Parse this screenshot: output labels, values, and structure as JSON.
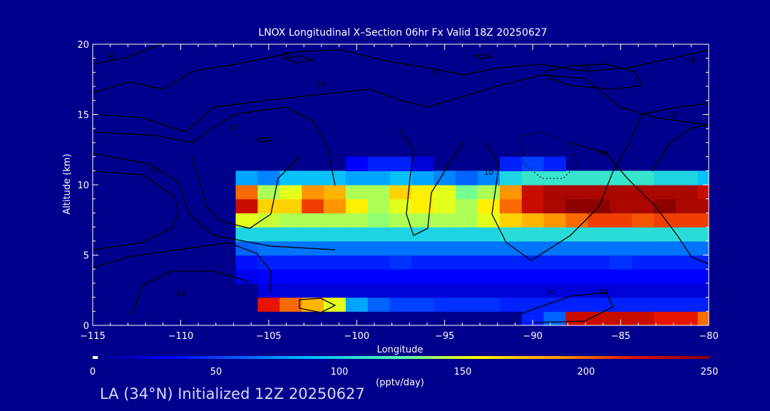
{
  "chart_data": {
    "type": "heatmap",
    "title": "LNOX Longitudinal X–Section 06hr  Fx Valid 18Z 20250627",
    "xlabel": "Longitude",
    "ylabel": "Altitude (km)",
    "xlim": [
      -115,
      -80
    ],
    "ylim": [
      0,
      20
    ],
    "xticks": [
      -115,
      -110,
      -105,
      -100,
      -95,
      -90,
      -85,
      -80
    ],
    "xtick_labels": [
      "−115",
      "−110",
      "−105",
      "−100",
      "−95",
      "−90",
      "−85",
      "−80"
    ],
    "yticks": [
      0,
      5,
      10,
      15,
      20
    ],
    "ytick_labels": [
      "0",
      "5",
      "10",
      "15",
      "20"
    ],
    "colorbar": {
      "label": "(pptv/day)",
      "min": 0,
      "max": 250,
      "ticks": [
        0,
        50,
        100,
        150,
        200,
        250
      ],
      "tick_labels": [
        "0",
        "50",
        "100",
        "150",
        "200",
        "250"
      ]
    },
    "longitudes": [
      -115,
      -113.75,
      -112.5,
      -111.25,
      -110,
      -108.75,
      -107.5,
      -106.25,
      -105,
      -103.75,
      -102.5,
      -101.25,
      -100,
      -98.75,
      -97.5,
      -96.25,
      -95,
      -93.75,
      -92.5,
      -91.25,
      -90,
      -88.75,
      -87.5,
      -86.25,
      -85,
      -83.75,
      -82.5,
      -81.25,
      -80
    ],
    "altitudes": [
      0.5,
      1.5,
      2.5,
      3.5,
      4.5,
      5.5,
      6.5,
      7.5,
      8.5,
      9.5,
      10.5,
      11.5
    ],
    "values": [
      [
        0,
        0,
        0,
        0,
        0,
        0,
        0,
        0,
        0,
        0,
        0,
        0,
        0,
        0,
        0,
        0,
        0,
        0,
        0,
        0,
        40,
        60,
        230,
        230,
        230,
        230,
        220,
        220,
        200
      ],
      [
        0,
        0,
        0,
        0,
        0,
        0,
        0,
        0,
        220,
        200,
        180,
        150,
        80,
        60,
        50,
        50,
        45,
        45,
        45,
        40,
        40,
        40,
        40,
        40,
        40,
        40,
        40,
        40,
        40
      ],
      [
        0,
        0,
        0,
        0,
        0,
        0,
        0,
        0,
        20,
        20,
        20,
        20,
        20,
        20,
        20,
        20,
        20,
        20,
        20,
        20,
        20,
        20,
        20,
        20,
        20,
        20,
        20,
        20,
        20
      ],
      [
        0,
        0,
        0,
        0,
        0,
        0,
        0,
        25,
        30,
        30,
        30,
        30,
        30,
        30,
        30,
        30,
        30,
        30,
        30,
        30,
        30,
        30,
        30,
        30,
        30,
        30,
        30,
        30,
        30
      ],
      [
        0,
        0,
        0,
        0,
        0,
        0,
        0,
        35,
        40,
        40,
        40,
        40,
        40,
        40,
        45,
        40,
        40,
        40,
        40,
        40,
        40,
        40,
        40,
        40,
        45,
        40,
        40,
        40,
        40
      ],
      [
        0,
        0,
        0,
        0,
        0,
        0,
        0,
        60,
        65,
        65,
        65,
        65,
        65,
        65,
        65,
        65,
        65,
        65,
        65,
        65,
        65,
        65,
        65,
        65,
        65,
        65,
        65,
        65,
        65
      ],
      [
        0,
        0,
        0,
        0,
        0,
        0,
        0,
        100,
        100,
        100,
        100,
        100,
        100,
        100,
        100,
        100,
        100,
        100,
        100,
        105,
        105,
        105,
        105,
        105,
        105,
        105,
        105,
        105,
        105
      ],
      [
        0,
        0,
        0,
        0,
        0,
        0,
        0,
        150,
        145,
        140,
        140,
        140,
        140,
        135,
        140,
        140,
        140,
        140,
        150,
        170,
        180,
        190,
        200,
        210,
        210,
        205,
        210,
        210,
        210
      ],
      [
        0,
        0,
        0,
        0,
        0,
        0,
        0,
        230,
        170,
        170,
        210,
        190,
        160,
        140,
        150,
        160,
        150,
        140,
        160,
        200,
        230,
        240,
        250,
        250,
        240,
        240,
        250,
        240,
        240
      ],
      [
        0,
        0,
        0,
        0,
        0,
        0,
        0,
        200,
        140,
        150,
        190,
        180,
        140,
        140,
        170,
        160,
        150,
        130,
        140,
        190,
        230,
        240,
        240,
        240,
        240,
        240,
        240,
        240,
        230
      ],
      [
        0,
        0,
        0,
        0,
        0,
        0,
        0,
        80,
        70,
        90,
        90,
        90,
        80,
        80,
        90,
        80,
        70,
        60,
        70,
        100,
        110,
        110,
        110,
        110,
        110,
        110,
        100,
        100,
        90
      ],
      [
        0,
        0,
        0,
        0,
        0,
        0,
        0,
        0,
        0,
        0,
        0,
        0,
        30,
        40,
        40,
        20,
        0,
        0,
        0,
        40,
        50,
        40,
        0,
        0,
        0,
        0,
        0,
        0,
        0
      ]
    ],
    "contour_labels": [
      {
        "lon": -114,
        "alt": 19,
        "text": "10"
      },
      {
        "lon": -104,
        "alt": 19.1,
        "text": "10"
      },
      {
        "lon": -95.5,
        "alt": 17.8,
        "text": "10"
      },
      {
        "lon": -102,
        "alt": 17,
        "text": "10"
      },
      {
        "lon": -87,
        "alt": 18.2,
        "text": "10"
      },
      {
        "lon": -81,
        "alt": 18.7,
        "text": "10"
      },
      {
        "lon": -82,
        "alt": 14.8,
        "text": "10"
      },
      {
        "lon": -111.5,
        "alt": 10.9,
        "text": "10"
      },
      {
        "lon": -107,
        "alt": 13.9,
        "text": "10"
      },
      {
        "lon": -92.5,
        "alt": 10.7,
        "text": "10"
      },
      {
        "lon": -86,
        "alt": 12.1,
        "text": "10"
      },
      {
        "lon": -89,
        "alt": 2.2,
        "text": "10"
      },
      {
        "lon": -86,
        "alt": 2.2,
        "text": "10"
      },
      {
        "lon": -110,
        "alt": 2.1,
        "text": "10"
      }
    ]
  },
  "footer": "LA (34°N) Initialized 12Z 20250627"
}
